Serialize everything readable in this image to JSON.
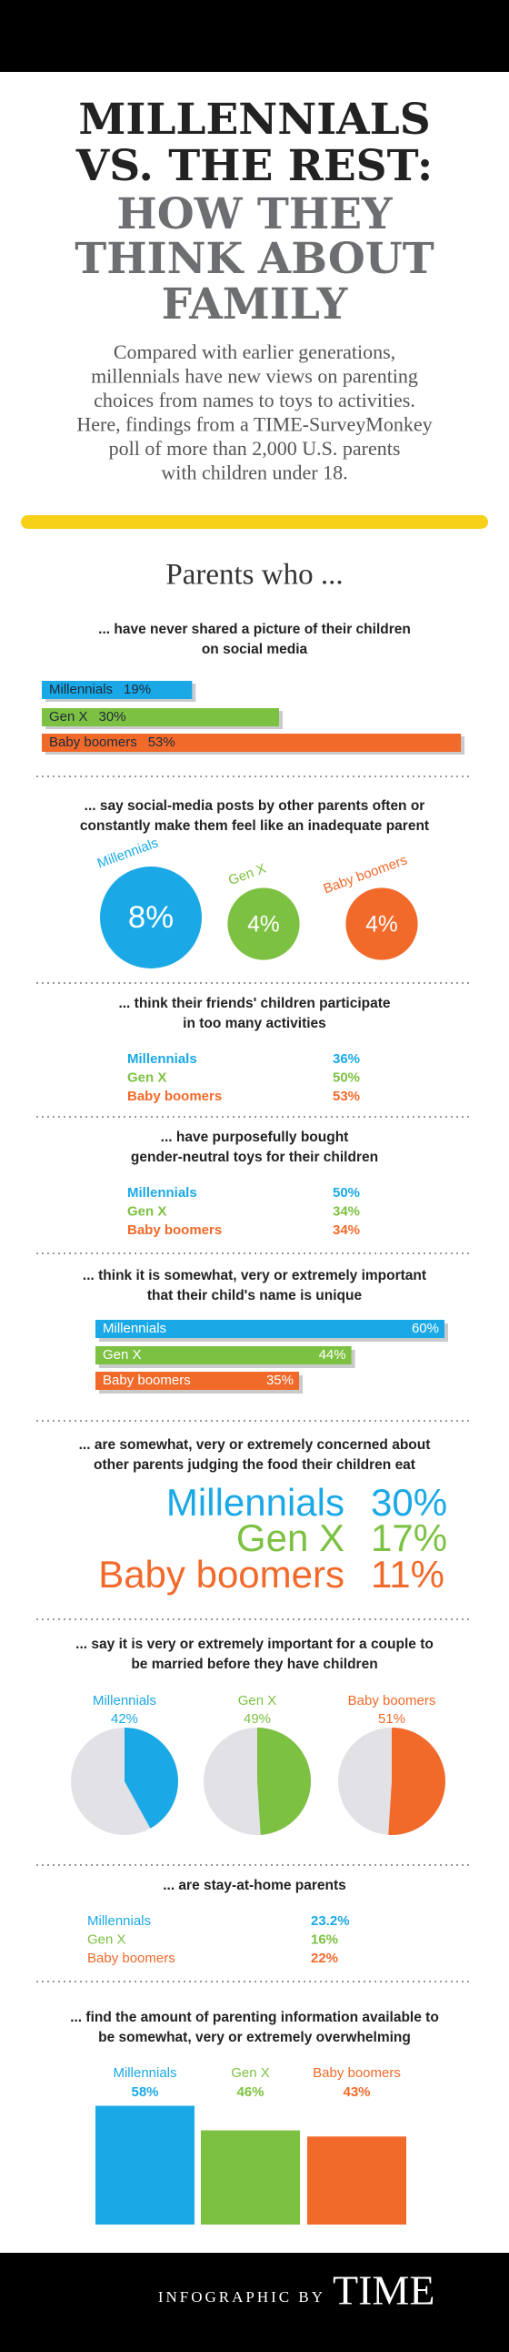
{
  "header": {
    "title_lines": [
      "MILLENNIALS",
      "VS. THE REST:"
    ],
    "subtitle_lines": [
      "HOW THEY",
      "THINK ABOUT",
      "FAMILY"
    ],
    "intro_lines": [
      "Compared with earlier generations,",
      "millennials have new views on parenting",
      "choices from names to toys to activities.",
      "Here, findings from a TIME-SurveyMonkey",
      "poll of more than 2,000 U.S. parents",
      "with children under 18."
    ]
  },
  "lead": "Parents who ...",
  "sections": [
    {
      "type": "hbar_inline",
      "question_lines": [
        "... have never shared a picture of their children",
        "on social media"
      ],
      "series": [
        {
          "name": "Millennials",
          "color": "#1aa9e6",
          "value": 19,
          "value_label": "19%"
        },
        {
          "name": "Gen X",
          "color": "#7dc142",
          "value": 30,
          "value_label": "30%"
        },
        {
          "name": "Baby boomers",
          "color": "#f26a2a",
          "value": 53,
          "value_label": "53%"
        }
      ]
    },
    {
      "type": "bubble",
      "question_lines": [
        "... say social-media posts by other parents often or",
        "constantly make them feel like an inadequate parent"
      ],
      "series": [
        {
          "name": "Millennials",
          "color": "#1aa9e6",
          "value": 8,
          "value_label": "8%"
        },
        {
          "name": "Gen X",
          "color": "#7dc142",
          "value": 4,
          "value_label": "4%"
        },
        {
          "name": "Baby boomers",
          "color": "#f26a2a",
          "value": 4,
          "value_label": "4%"
        }
      ]
    },
    {
      "type": "list",
      "question_lines": [
        "... think their friends' children participate",
        "in too many activities"
      ],
      "series": [
        {
          "name": "Millennials",
          "color": "#1aa9e6",
          "value": 36,
          "value_label": "36%"
        },
        {
          "name": "Gen X",
          "color": "#7dc142",
          "value": 50,
          "value_label": "50%"
        },
        {
          "name": "Baby boomers",
          "color": "#f26a2a",
          "value": 53,
          "value_label": "53%"
        }
      ]
    },
    {
      "type": "list",
      "question_lines": [
        "... have purposefully bought",
        "gender-neutral toys for their children"
      ],
      "series": [
        {
          "name": "Millennials",
          "color": "#1aa9e6",
          "value": 50,
          "value_label": "50%"
        },
        {
          "name": "Gen X",
          "color": "#7dc142",
          "value": 34,
          "value_label": "34%"
        },
        {
          "name": "Baby boomers",
          "color": "#f26a2a",
          "value": 34,
          "value_label": "34%"
        }
      ]
    },
    {
      "type": "hbar",
      "question_lines": [
        "... think it is somewhat, very or extremely important",
        "that their child's name is unique"
      ],
      "series": [
        {
          "name": "Millennials",
          "color": "#1aa9e6",
          "value": 60,
          "value_label": "60%"
        },
        {
          "name": "Gen X",
          "color": "#7dc142",
          "value": 44,
          "value_label": "44%"
        },
        {
          "name": "Baby boomers",
          "color": "#f26a2a",
          "value": 35,
          "value_label": "35%"
        }
      ]
    },
    {
      "type": "big_text",
      "question_lines": [
        "... are somewhat, very or extremely concerned about",
        "other parents judging the food their children eat"
      ],
      "series": [
        {
          "name": "Millennials",
          "color": "#1aa9e6",
          "value": 30,
          "value_label": "30%"
        },
        {
          "name": "Gen X",
          "color": "#7dc142",
          "value": 17,
          "value_label": "17%"
        },
        {
          "name": "Baby boomers",
          "color": "#f26a2a",
          "value": 11,
          "value_label": "11%"
        }
      ]
    },
    {
      "type": "pie",
      "question_lines": [
        "... say it is very or extremely important for a couple to",
        "be married before they have children"
      ],
      "series": [
        {
          "name": "Millennials",
          "color": "#1aa9e6",
          "value": 42,
          "value_label": "42%"
        },
        {
          "name": "Gen X",
          "color": "#7dc142",
          "value": 49,
          "value_label": "49%"
        },
        {
          "name": "Baby boomers",
          "color": "#f26a2a",
          "value": 51,
          "value_label": "51%"
        }
      ]
    },
    {
      "type": "list",
      "question_lines": [
        "... are stay-at-home parents"
      ],
      "series": [
        {
          "name": "Millennials",
          "color": "#1aa9e6",
          "value": 23.2,
          "value_label": "23.2%"
        },
        {
          "name": "Gen X",
          "color": "#7dc142",
          "value": 16,
          "value_label": "16%"
        },
        {
          "name": "Baby boomers",
          "color": "#f26a2a",
          "value": 22,
          "value_label": "22%"
        }
      ]
    },
    {
      "type": "column",
      "question_lines": [
        "... find the amount of parenting information available to",
        "be somewhat, very or extremely overwhelming"
      ],
      "series": [
        {
          "name": "Millennials",
          "color": "#1aa9e6",
          "value": 58,
          "value_label": "58%"
        },
        {
          "name": "Gen X",
          "color": "#7dc142",
          "value": 46,
          "value_label": "46%"
        },
        {
          "name": "Baby boomers",
          "color": "#f26a2a",
          "value": 43,
          "value_label": "43%"
        }
      ]
    }
  ],
  "footer": {
    "credit": "INFOGRAPHIC BY",
    "brand": "TIME"
  }
}
